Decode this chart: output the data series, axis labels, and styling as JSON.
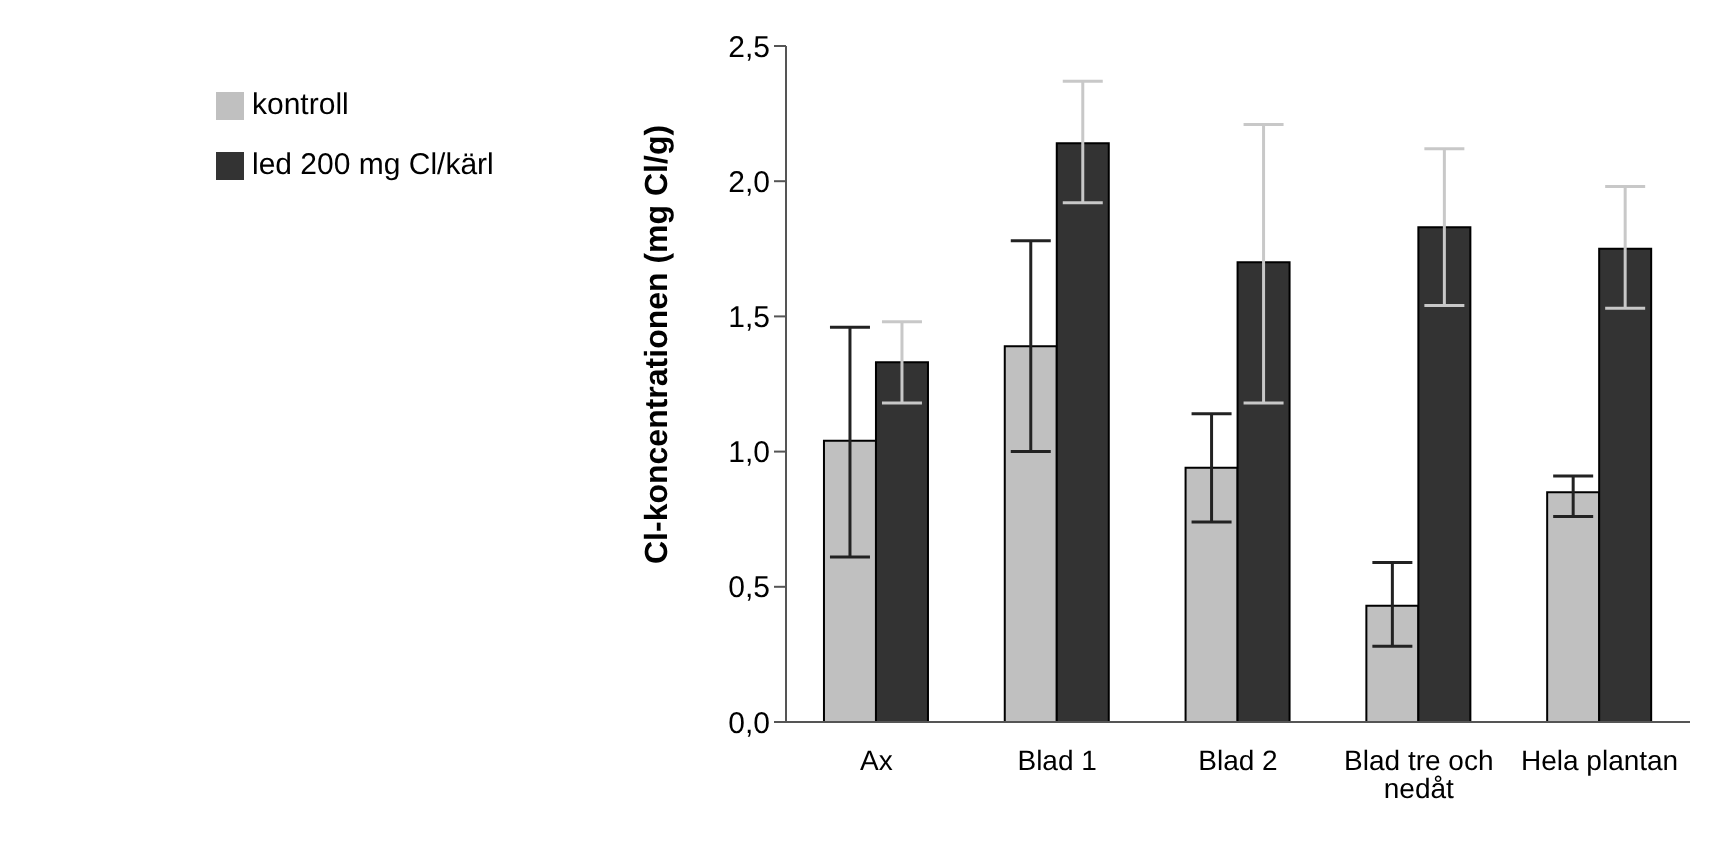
{
  "chart_data": {
    "type": "bar",
    "ylabel": "Cl-koncentrationen (mg Cl/g)",
    "categories": [
      "Ax",
      "Blad 1",
      "Blad 2",
      "Blad tre och nedåt",
      "Hela plantan"
    ],
    "series": [
      {
        "name": "kontroll",
        "color": "#c0c0c0",
        "values": [
          1.04,
          1.39,
          0.94,
          0.43,
          0.85
        ],
        "errors": [
          [
            0.61,
            1.46
          ],
          [
            1.0,
            1.78
          ],
          [
            0.74,
            1.14
          ],
          [
            0.28,
            0.59
          ],
          [
            0.76,
            0.91
          ]
        ]
      },
      {
        "name": "led 200 mg Cl/kärl",
        "color": "#333333",
        "values": [
          1.33,
          2.14,
          1.7,
          1.83,
          1.75
        ],
        "errors": [
          [
            1.18,
            1.48
          ],
          [
            1.92,
            2.37
          ],
          [
            1.18,
            2.21
          ],
          [
            1.54,
            2.12
          ],
          [
            1.53,
            1.98
          ]
        ]
      }
    ],
    "ylim": [
      0,
      2.5
    ],
    "yticks": [
      {
        "value": 0,
        "label": "0,0"
      },
      {
        "value": 0.5,
        "label": "0,5"
      },
      {
        "value": 1,
        "label": "1,0"
      },
      {
        "value": 1.5,
        "label": "1,5"
      },
      {
        "value": 2,
        "label": "2,0"
      },
      {
        "value": 2.5,
        "label": "2,5"
      }
    ],
    "grid": false,
    "legend": "top left"
  }
}
